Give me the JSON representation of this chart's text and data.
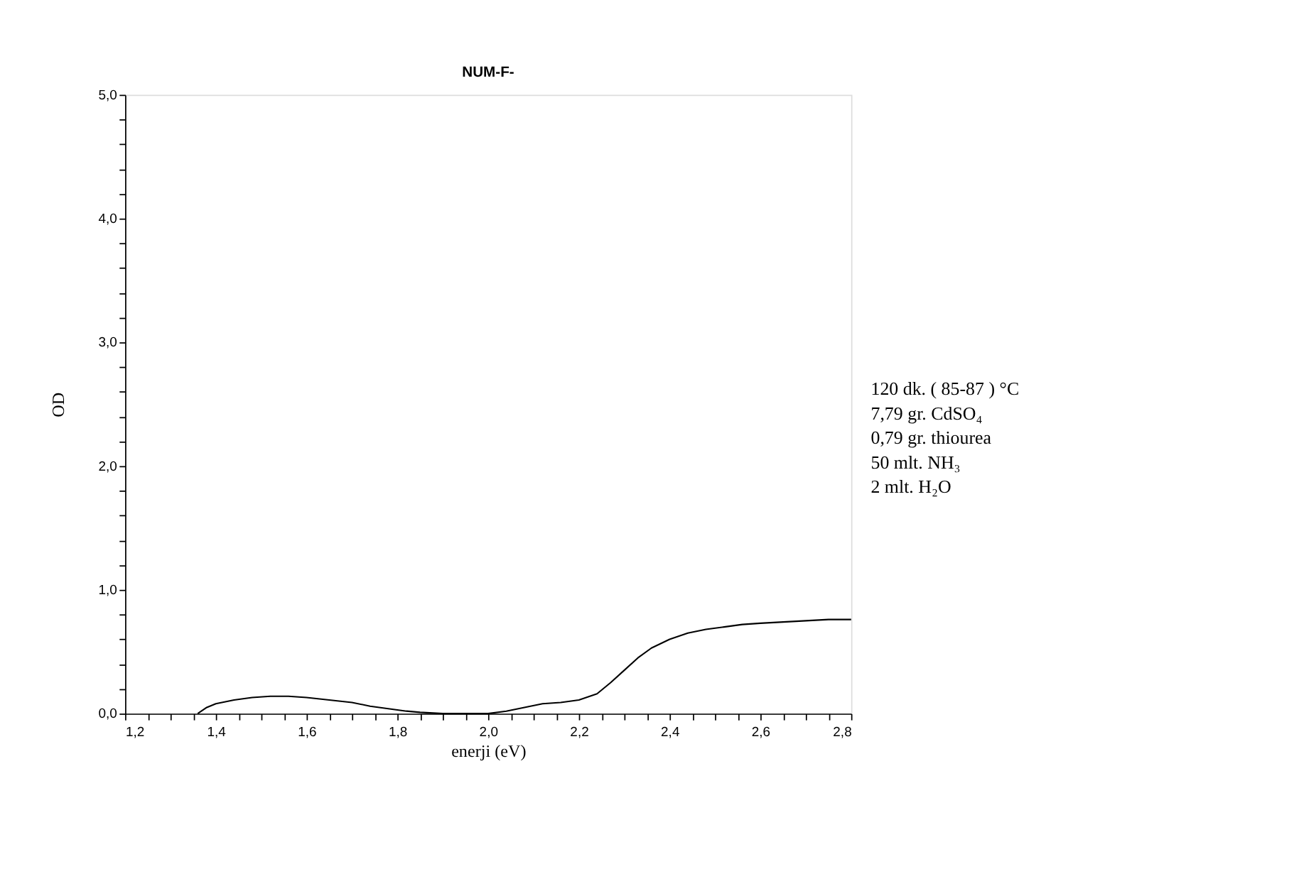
{
  "chart_data": {
    "type": "line",
    "title": "NUM-F-",
    "xlabel": "enerji (eV)",
    "ylabel": "OD",
    "x": [
      1.36,
      1.38,
      1.4,
      1.44,
      1.48,
      1.52,
      1.56,
      1.6,
      1.65,
      1.7,
      1.74,
      1.78,
      1.82,
      1.85,
      1.9,
      1.95,
      2.0,
      2.04,
      2.08,
      2.12,
      2.16,
      2.2,
      2.24,
      2.27,
      2.3,
      2.33,
      2.36,
      2.4,
      2.44,
      2.48,
      2.52,
      2.56,
      2.6,
      2.65,
      2.7,
      2.75,
      2.8
    ],
    "series": [
      {
        "color": "#000000",
        "values": [
          0.0,
          0.05,
          0.08,
          0.11,
          0.13,
          0.14,
          0.14,
          0.13,
          0.11,
          0.09,
          0.06,
          0.04,
          0.02,
          0.01,
          0.0,
          0.0,
          0.0,
          0.02,
          0.05,
          0.08,
          0.09,
          0.11,
          0.16,
          0.25,
          0.35,
          0.45,
          0.53,
          0.6,
          0.65,
          0.68,
          0.7,
          0.72,
          0.73,
          0.74,
          0.75,
          0.76,
          0.76
        ]
      }
    ],
    "xlim": [
      1.2,
      2.8
    ],
    "ylim": [
      0,
      5.0
    ],
    "xticks": [
      {
        "value": 1.2,
        "label": "1,2"
      },
      {
        "value": 1.25,
        "label": null
      },
      {
        "value": 1.3,
        "label": null
      },
      {
        "value": 1.35,
        "label": null
      },
      {
        "value": 1.4,
        "label": "1,4"
      },
      {
        "value": 1.45,
        "label": null
      },
      {
        "value": 1.5,
        "label": null
      },
      {
        "value": 1.55,
        "label": null
      },
      {
        "value": 1.6,
        "label": "1,6"
      },
      {
        "value": 1.65,
        "label": null
      },
      {
        "value": 1.7,
        "label": null
      },
      {
        "value": 1.75,
        "label": null
      },
      {
        "value": 1.8,
        "label": "1,8"
      },
      {
        "value": 1.85,
        "label": null
      },
      {
        "value": 1.9,
        "label": null
      },
      {
        "value": 1.95,
        "label": null
      },
      {
        "value": 2.0,
        "label": "2,0"
      },
      {
        "value": 2.05,
        "label": null
      },
      {
        "value": 2.1,
        "label": null
      },
      {
        "value": 2.15,
        "label": null
      },
      {
        "value": 2.2,
        "label": "2,2"
      },
      {
        "value": 2.25,
        "label": null
      },
      {
        "value": 2.3,
        "label": null
      },
      {
        "value": 2.35,
        "label": null
      },
      {
        "value": 2.4,
        "label": "2,4"
      },
      {
        "value": 2.45,
        "label": null
      },
      {
        "value": 2.5,
        "label": null
      },
      {
        "value": 2.55,
        "label": null
      },
      {
        "value": 2.6,
        "label": "2,6"
      },
      {
        "value": 2.65,
        "label": null
      },
      {
        "value": 2.7,
        "label": null
      },
      {
        "value": 2.75,
        "label": null
      },
      {
        "value": 2.8,
        "label": "2,8"
      }
    ],
    "yticks": [
      {
        "value": 0,
        "label": "0,0"
      },
      {
        "value": 0.2,
        "label": null
      },
      {
        "value": 0.4,
        "label": null
      },
      {
        "value": 0.6,
        "label": null
      },
      {
        "value": 0.8,
        "label": null
      },
      {
        "value": 1.0,
        "label": "1,0"
      },
      {
        "value": 1.2,
        "label": null
      },
      {
        "value": 1.4,
        "label": null
      },
      {
        "value": 1.6,
        "label": null
      },
      {
        "value": 1.8,
        "label": null
      },
      {
        "value": 2.0,
        "label": "2,0"
      },
      {
        "value": 2.2,
        "label": null
      },
      {
        "value": 2.4,
        "label": null
      },
      {
        "value": 2.6,
        "label": null
      },
      {
        "value": 2.8,
        "label": null
      },
      {
        "value": 3.0,
        "label": "3,0"
      },
      {
        "value": 3.2,
        "label": null
      },
      {
        "value": 3.4,
        "label": null
      },
      {
        "value": 3.6,
        "label": null
      },
      {
        "value": 3.8,
        "label": null
      },
      {
        "value": 4.0,
        "label": "4,0"
      },
      {
        "value": 4.2,
        "label": null
      },
      {
        "value": 4.4,
        "label": null
      },
      {
        "value": 4.6,
        "label": null
      },
      {
        "value": 4.8,
        "label": null
      },
      {
        "value": 5.0,
        "label": "5,0"
      }
    ],
    "annotations": [
      "120 dk. ( 85-87 ) °C",
      "7,79 gr. CdSO₄",
      "0,79 gr. thiourea",
      "50  mlt. NH₃",
      "2   mlt. H₂O"
    ],
    "grid": false,
    "legend": false,
    "marker": "none",
    "line_style": "solid"
  }
}
